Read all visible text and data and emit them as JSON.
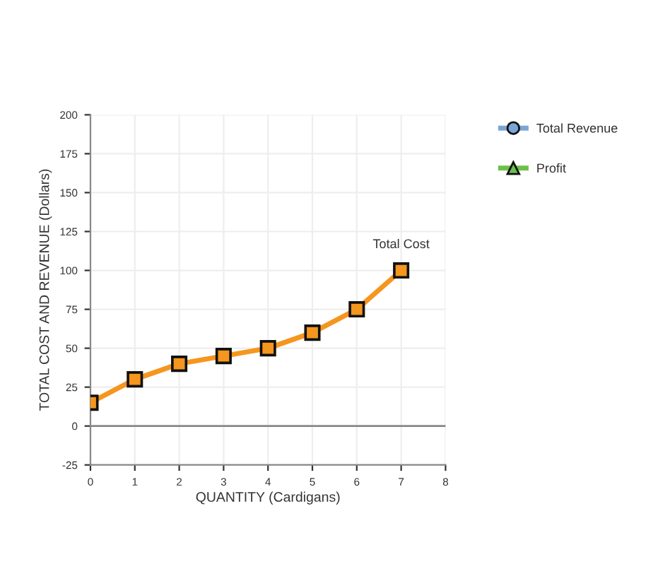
{
  "chart_data": {
    "type": "line",
    "xlabel": "QUANTITY (Cardigans)",
    "ylabel": "TOTAL COST AND REVENUE (Dollars)",
    "x": [
      0,
      1,
      2,
      3,
      4,
      5,
      6,
      7
    ],
    "series": [
      {
        "name": "Total Cost",
        "color": "#f5961e",
        "marker": "square",
        "values": [
          15,
          30,
          40,
          45,
          50,
          60,
          75,
          100
        ]
      },
      {
        "name": "Total Revenue",
        "color": "#7aa6d6",
        "marker": "circle",
        "values": [
          null,
          null,
          null,
          null,
          null,
          null,
          null,
          null
        ]
      },
      {
        "name": "Profit",
        "color": "#6cc04a",
        "marker": "triangle",
        "values": [
          null,
          null,
          null,
          null,
          null,
          null,
          null,
          null
        ]
      }
    ],
    "xlim": [
      0,
      8
    ],
    "xticks": [
      0,
      1,
      2,
      3,
      4,
      5,
      6,
      7,
      8
    ],
    "ylim": [
      -25,
      200
    ],
    "yticks": [
      -25,
      0,
      25,
      50,
      75,
      100,
      125,
      150,
      175,
      200
    ],
    "ref_lines": [
      {
        "axis": "y",
        "value": 0,
        "color": "#888888"
      }
    ],
    "grid": true,
    "legend": "right",
    "line_style": "solid"
  }
}
